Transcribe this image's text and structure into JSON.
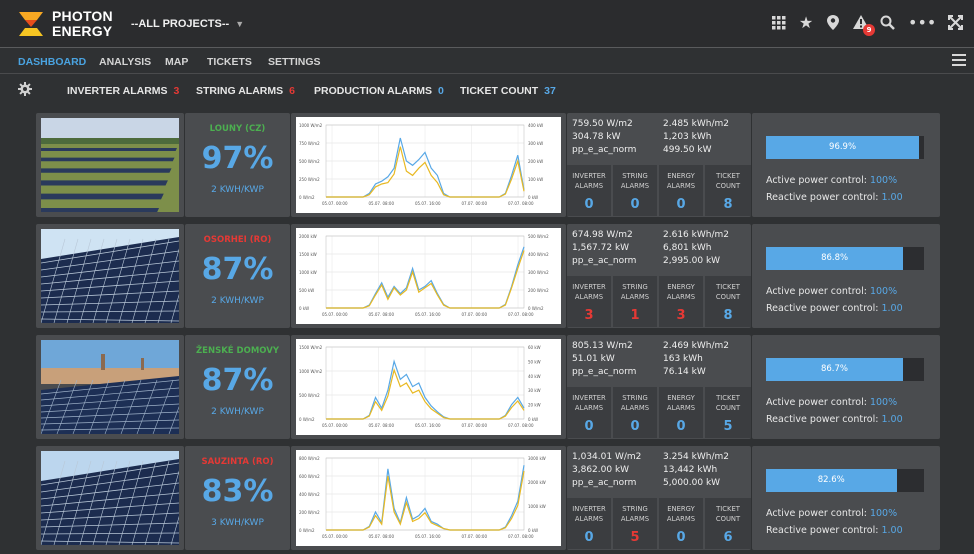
{
  "brand": {
    "line1": "PHOTON",
    "line2": "ENERGY"
  },
  "project_selector": {
    "label": "--ALL PROJECTS--"
  },
  "notifications": {
    "count": "9"
  },
  "colors": {
    "accent": "#58a8e6",
    "alarm": "#e53935",
    "ok": "#4caf50",
    "yellow": "#e8b923"
  },
  "nav": [
    {
      "label": "DASHBOARD",
      "active": true
    },
    {
      "label": "ANALYSIS"
    },
    {
      "label": "MAP"
    },
    {
      "label": "TICKETS"
    },
    {
      "label": "SETTINGS"
    }
  ],
  "alarms": {
    "inverter": {
      "label": "INVERTER ALARMS",
      "count": "3"
    },
    "string": {
      "label": "STRING ALARMS",
      "count": "6"
    },
    "production": {
      "label": "PRODUCTION ALARMS",
      "count": "0"
    },
    "tickets": {
      "label": "TICKET COUNT",
      "count": "37"
    }
  },
  "alarm_headers": {
    "inverter": "INVERTER",
    "string": "STRING",
    "energy": "ENERGY",
    "ticket": "TICKET",
    "alarms": "ALARMS",
    "count": "COUNT"
  },
  "control_labels": {
    "active": "Active power control:",
    "reactive": "Reactive power control:"
  },
  "projects": [
    {
      "name": "LOUNY (CZ)",
      "name_color": "#4caf50",
      "pr": "97%",
      "yield": "2 KWH/KWP",
      "irradiance": "759.50 W/m2",
      "power": "304.78 kW",
      "norm": "pp_e_ac_norm",
      "spec_energy": "2.485 kWh/m2",
      "energy": "1,203 kWh",
      "norm_val": "499.50 kW",
      "alarms": [
        "0",
        "0",
        "0",
        "8"
      ],
      "alarm_colors": [
        "#58a8e6",
        "#58a8e6",
        "#58a8e6",
        "#58a8e6"
      ],
      "bar": "96.9%",
      "bar_fraction": 0.969,
      "active": "100%",
      "reactive": "1.00",
      "photo": "field",
      "chart": {
        "left_ticks": [
          "1000 W/m2",
          "750 W/m2",
          "500 W/m2",
          "250 W/m2",
          "0 W/m2"
        ],
        "right_ticks": [
          "400 kW",
          "300 kW",
          "200 kW",
          "100 kW",
          "0 kW"
        ],
        "x_ticks": [
          "05.07. 00:00",
          "05.07. 08:00",
          "05.07. 16:00",
          "07.07. 00:00",
          "07.07. 08:00"
        ],
        "blue": [
          0,
          0,
          0,
          0,
          0,
          0,
          0,
          0.05,
          0.18,
          0.22,
          0.28,
          0.4,
          0.82,
          0.5,
          0.44,
          0.52,
          0.62,
          0.4,
          0.3,
          0.05,
          0,
          0,
          0,
          0,
          0,
          0,
          0,
          0,
          0,
          0.05,
          0.3,
          0.58,
          0.1
        ],
        "yellow": [
          0,
          0,
          0,
          0,
          0,
          0,
          0,
          0.03,
          0.14,
          0.18,
          0.2,
          0.32,
          0.7,
          0.36,
          0.3,
          0.4,
          0.48,
          0.3,
          0.2,
          0.03,
          0,
          0,
          0,
          0,
          0,
          0,
          0,
          0,
          0,
          0.04,
          0.25,
          0.5,
          0.08
        ]
      }
    },
    {
      "name": "OSORHEI (RO)",
      "name_color": "#e53935",
      "pr": "87%",
      "yield": "2 KWH/KWP",
      "irradiance": "674.98 W/m2",
      "power": "1,567.72 kW",
      "norm": "pp_e_ac_norm",
      "spec_energy": "2.616 kWh/m2",
      "energy": "6,801 kWh",
      "norm_val": "2,995.00 kW",
      "alarms": [
        "3",
        "1",
        "3",
        "8"
      ],
      "alarm_colors": [
        "#e53935",
        "#e53935",
        "#e53935",
        "#58a8e6"
      ],
      "bar": "86.8%",
      "bar_fraction": 0.868,
      "active": "100%",
      "reactive": "1.00",
      "photo": "panels",
      "chart": {
        "left_ticks": [
          "2000 kW",
          "1500 kW",
          "1000 kW",
          "500 kW",
          "0 kW"
        ],
        "right_ticks": [
          "500 W/m2",
          "400 W/m2",
          "300 W/m2",
          "200 W/m2",
          "0 W/m2"
        ],
        "x_ticks": [
          "05.07. 00:00",
          "05.07. 08:00",
          "05.07. 16:00",
          "07.07. 00:00",
          "07.07. 08:00"
        ],
        "blue": [
          0,
          0,
          0,
          0,
          0,
          0,
          0,
          0.04,
          0.2,
          0.35,
          0.15,
          0.3,
          0.2,
          0.28,
          0.55,
          0.25,
          0.3,
          0.38,
          0.2,
          0.05,
          0,
          0,
          0,
          0,
          0,
          0,
          0,
          0,
          0,
          0.05,
          0.3,
          0.6,
          0.85
        ],
        "yellow": [
          0,
          0,
          0,
          0,
          0,
          0,
          0,
          0.03,
          0.18,
          0.32,
          0.12,
          0.28,
          0.18,
          0.25,
          0.5,
          0.22,
          0.28,
          0.34,
          0.18,
          0.04,
          0,
          0,
          0,
          0,
          0,
          0,
          0,
          0,
          0,
          0.04,
          0.28,
          0.55,
          0.8
        ]
      }
    },
    {
      "name": "ŽENSKÉ DOMOVY",
      "name_color": "#4caf50",
      "pr": "87%",
      "yield": "2 KWH/KWP",
      "irradiance": "805.13 W/m2",
      "power": "51.01 kW",
      "norm": "pp_e_ac_norm",
      "spec_energy": "2.469 kWh/m2",
      "energy": "163 kWh",
      "norm_val": "76.14 kW",
      "alarms": [
        "0",
        "0",
        "0",
        "5"
      ],
      "alarm_colors": [
        "#58a8e6",
        "#58a8e6",
        "#58a8e6",
        "#58a8e6"
      ],
      "bar": "86.7%",
      "bar_fraction": 0.867,
      "active": "100%",
      "reactive": "1.00",
      "photo": "city",
      "chart": {
        "left_ticks": [
          "1500 W/m2",
          "1000 W/m2",
          "500 W/m2",
          "0 W/m2"
        ],
        "right_ticks": [
          "60 kW",
          "50 kW",
          "40 kW",
          "30 kW",
          "20 kW",
          "0 kW"
        ],
        "x_ticks": [
          "05.07. 00:00",
          "05.07. 08:00",
          "05.07. 16:00",
          "07.07. 00:00",
          "07.07. 08:00"
        ],
        "blue": [
          0,
          0,
          0,
          0,
          0,
          0,
          0,
          0.05,
          0.3,
          0.15,
          0.4,
          0.8,
          0.55,
          0.62,
          0.45,
          0.5,
          0.3,
          0.18,
          0.1,
          0.03,
          0,
          0,
          0,
          0,
          0,
          0,
          0,
          0,
          0,
          0.05,
          0.2,
          0.3,
          0.15
        ],
        "yellow": [
          0,
          0,
          0,
          0,
          0,
          0,
          0,
          0.04,
          0.24,
          0.12,
          0.32,
          0.68,
          0.45,
          0.5,
          0.36,
          0.4,
          0.24,
          0.14,
          0.08,
          0.02,
          0,
          0,
          0,
          0,
          0,
          0,
          0,
          0,
          0,
          0.04,
          0.16,
          0.25,
          0.12
        ]
      }
    },
    {
      "name": "SAUZINTA (RO)",
      "name_color": "#e53935",
      "pr": "83%",
      "yield": "3 KWH/KWP",
      "irradiance": "1,034.01 W/m2",
      "power": "3,862.00 kW",
      "norm": "pp_e_ac_norm",
      "spec_energy": "3.254 kWh/m2",
      "energy": "13,442 kWh",
      "norm_val": "5,000.00 kW",
      "alarms": [
        "0",
        "5",
        "0",
        "6"
      ],
      "alarm_colors": [
        "#58a8e6",
        "#e53935",
        "#58a8e6",
        "#58a8e6"
      ],
      "bar": "82.6%",
      "bar_fraction": 0.826,
      "active": "100%",
      "reactive": "1.00",
      "photo": "panels2",
      "chart": {
        "left_ticks": [
          "800 W/m2",
          "600 W/m2",
          "400 W/m2",
          "200 W/m2",
          "0 W/m2"
        ],
        "right_ticks": [
          "3000 kW",
          "2000 kW",
          "1000 kW",
          "0 kW"
        ],
        "x_ticks": [
          "05.07. 00:00",
          "05.07. 08:00",
          "05.07. 16:00",
          "07.07. 00:00",
          "07.07. 08:00"
        ],
        "blue": [
          0,
          0,
          0,
          0,
          0,
          0,
          0,
          0.05,
          0.25,
          0.1,
          0.85,
          0.3,
          0.1,
          0.45,
          0.15,
          0.2,
          0.3,
          0.12,
          0.08,
          0.02,
          0,
          0,
          0,
          0,
          0,
          0,
          0,
          0,
          0,
          0.04,
          0.2,
          0.4,
          0.9
        ],
        "yellow": [
          0,
          0,
          0,
          0,
          0,
          0,
          0,
          0.04,
          0.2,
          0.08,
          0.75,
          0.25,
          0.08,
          0.38,
          0.12,
          0.16,
          0.24,
          0.1,
          0.06,
          0.02,
          0,
          0,
          0,
          0,
          0,
          0,
          0,
          0,
          0,
          0.03,
          0.16,
          0.34,
          0.82
        ]
      }
    }
  ]
}
